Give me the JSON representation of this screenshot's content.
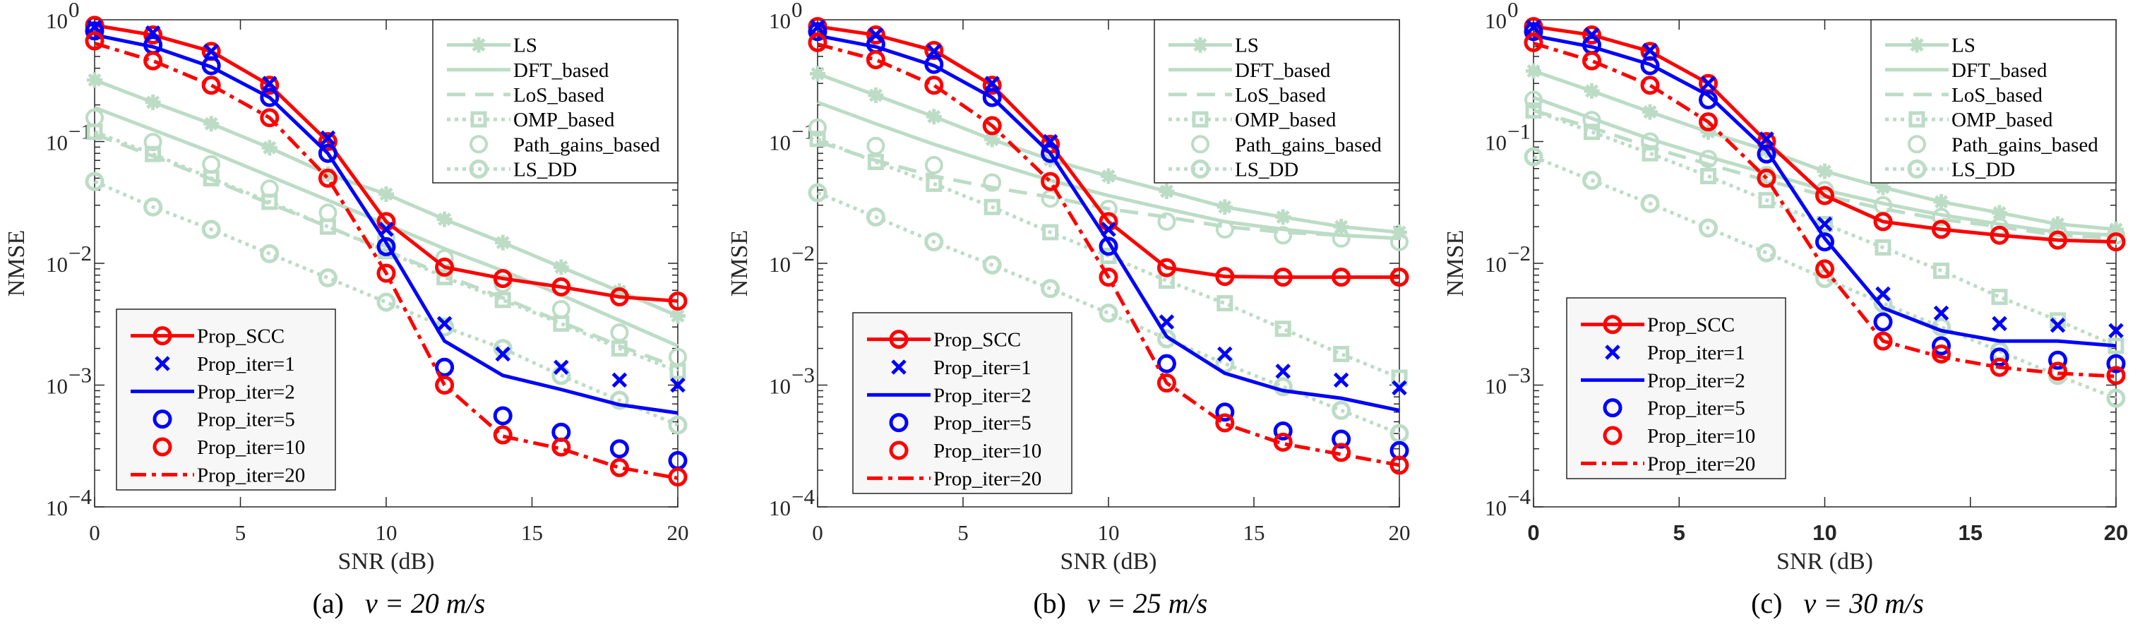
{
  "colors": {
    "proposed_red": "#ff0000",
    "proposed_blue": "#0000ff",
    "baseline_green": "#bcdcc6"
  },
  "chart_data": [
    {
      "type": "line",
      "caption": {
        "label": "(a)",
        "text": "v = 20 m/s"
      },
      "xlabel": "SNR (dB)",
      "ylabel": "NMSE",
      "yscale": "log",
      "ylim": [
        0.0001,
        1
      ],
      "xlim": [
        0,
        20
      ],
      "xticks": [
        "0",
        "5",
        "10",
        "15",
        "20"
      ],
      "yticks": [
        {
          "base": "10",
          "exp": "0"
        },
        {
          "base": "10",
          "exp": "−1"
        },
        {
          "base": "10",
          "exp": "−2"
        },
        {
          "base": "10",
          "exp": "−3"
        },
        {
          "base": "10",
          "exp": "−4"
        }
      ],
      "legend_baselines": "top-right",
      "legend_proposed": "bottom-left",
      "x": [
        0,
        2,
        4,
        6,
        8,
        10,
        12,
        14,
        16,
        18,
        20
      ],
      "series": [
        {
          "name": "LS",
          "group": "baseline",
          "values": [
            0.32,
            0.21,
            0.14,
            0.089,
            0.054,
            0.037,
            0.023,
            0.0148,
            0.0093,
            0.0059,
            0.0037
          ]
        },
        {
          "name": "DFT_based",
          "group": "baseline",
          "values": [
            0.19,
            0.125,
            0.082,
            0.052,
            0.033,
            0.021,
            0.0132,
            0.0087,
            0.0055,
            0.0034,
            0.0021
          ]
        },
        {
          "name": "LoS_based",
          "group": "baseline",
          "values": [
            0.115,
            0.076,
            0.049,
            0.031,
            0.02,
            0.0128,
            0.008,
            0.0052,
            0.0033,
            0.0021,
            0.0014
          ]
        },
        {
          "name": "OMP_based",
          "group": "baseline",
          "values": [
            0.12,
            0.079,
            0.05,
            0.032,
            0.02,
            0.0126,
            0.0077,
            0.005,
            0.0032,
            0.002,
            0.0013
          ]
        },
        {
          "name": "Path_gains_based",
          "group": "baseline",
          "values": [
            0.157,
            0.099,
            0.065,
            0.041,
            0.026,
            0.016,
            0.011,
            0.0068,
            0.0042,
            0.0027,
            0.0017
          ]
        },
        {
          "name": "LS_DD",
          "group": "baseline",
          "values": [
            0.047,
            0.029,
            0.019,
            0.012,
            0.0076,
            0.0048,
            0.003,
            0.002,
            0.0012,
            0.00075,
            0.00047
          ]
        },
        {
          "name": "Prop_SCC",
          "group": "proposed",
          "values": [
            0.9,
            0.75,
            0.55,
            0.29,
            0.1,
            0.022,
            0.0093,
            0.0075,
            0.0064,
            0.0053,
            0.0049
          ]
        },
        {
          "name": "Prop_iter=1",
          "group": "proposed",
          "values": [
            0.87,
            0.78,
            0.55,
            0.3,
            0.107,
            0.019,
            0.0032,
            0.0018,
            0.0014,
            0.0011,
            0.001
          ]
        },
        {
          "name": "Prop_iter=2",
          "group": "proposed",
          "values": [
            0.75,
            0.6,
            0.41,
            0.23,
            0.08,
            0.0148,
            0.0023,
            0.0012,
            0.00092,
            0.00069,
            0.00059
          ]
        },
        {
          "name": "Prop_iter=5",
          "group": "proposed",
          "values": [
            0.81,
            0.62,
            0.42,
            0.23,
            0.08,
            0.0137,
            0.0014,
            0.00056,
            0.00041,
            0.0003,
            0.00024
          ]
        },
        {
          "name": "Prop_iter=10",
          "group": "proposed",
          "values": [
            0.67,
            0.46,
            0.29,
            0.157,
            0.05,
            0.0083,
            0.001,
            0.00039,
            0.00031,
            0.00021,
            0.000176
          ]
        },
        {
          "name": "Prop_iter=20",
          "group": "proposed",
          "values": [
            0.64,
            0.46,
            0.29,
            0.157,
            0.05,
            0.0083,
            0.001,
            0.00038,
            0.0003,
            0.00021,
            0.000172
          ]
        }
      ]
    },
    {
      "type": "line",
      "caption": {
        "label": "(b)",
        "text": "v = 25 m/s"
      },
      "xlabel": "SNR (dB)",
      "ylabel": "NMSE",
      "yscale": "log",
      "ylim": [
        0.0001,
        1
      ],
      "xlim": [
        0,
        20
      ],
      "xticks": [
        "0",
        "5",
        "10",
        "15",
        "20"
      ],
      "yticks": [
        {
          "base": "10",
          "exp": "0"
        },
        {
          "base": "10",
          "exp": "−1"
        },
        {
          "base": "10",
          "exp": "−2"
        },
        {
          "base": "10",
          "exp": "−3"
        },
        {
          "base": "10",
          "exp": "−4"
        }
      ],
      "legend_baselines": "top-right",
      "legend_proposed": "bottom-left",
      "x": [
        0,
        2,
        4,
        6,
        8,
        10,
        12,
        14,
        16,
        18,
        20
      ],
      "series": [
        {
          "name": "LS",
          "group": "baseline",
          "values": [
            0.36,
            0.24,
            0.16,
            0.104,
            0.071,
            0.052,
            0.039,
            0.029,
            0.024,
            0.02,
            0.018
          ]
        },
        {
          "name": "DFT_based",
          "group": "baseline",
          "values": [
            0.21,
            0.14,
            0.095,
            0.067,
            0.048,
            0.036,
            0.028,
            0.022,
            0.019,
            0.017,
            0.016
          ]
        },
        {
          "name": "LoS_based",
          "group": "baseline",
          "values": [
            0.1,
            0.07,
            0.052,
            0.042,
            0.035,
            0.028,
            0.024,
            0.02,
            0.018,
            0.017,
            0.016
          ]
        },
        {
          "name": "OMP_based",
          "group": "baseline",
          "values": [
            0.105,
            0.068,
            0.045,
            0.029,
            0.018,
            0.0115,
            0.0072,
            0.0047,
            0.0029,
            0.0018,
            0.00115
          ]
        },
        {
          "name": "Path_gains_based",
          "group": "baseline",
          "values": [
            0.13,
            0.092,
            0.064,
            0.046,
            0.034,
            0.028,
            0.022,
            0.019,
            0.017,
            0.016,
            0.015
          ]
        },
        {
          "name": "LS_DD",
          "group": "baseline",
          "values": [
            0.038,
            0.024,
            0.015,
            0.0097,
            0.0062,
            0.0039,
            0.0024,
            0.0015,
            0.00097,
            0.00062,
            0.0004
          ]
        },
        {
          "name": "Prop_SCC",
          "group": "proposed",
          "values": [
            0.88,
            0.75,
            0.56,
            0.29,
            0.095,
            0.022,
            0.0092,
            0.0078,
            0.0077,
            0.0077,
            0.0077
          ]
        },
        {
          "name": "Prop_iter=1",
          "group": "proposed",
          "values": [
            0.87,
            0.75,
            0.55,
            0.3,
            0.1,
            0.019,
            0.0033,
            0.0018,
            0.0013,
            0.0011,
            0.00095
          ]
        },
        {
          "name": "Prop_iter=2",
          "group": "proposed",
          "values": [
            0.74,
            0.6,
            0.42,
            0.23,
            0.08,
            0.015,
            0.0025,
            0.00125,
            0.0009,
            0.00078,
            0.00062
          ]
        },
        {
          "name": "Prop_iter=5",
          "group": "proposed",
          "values": [
            0.8,
            0.63,
            0.43,
            0.23,
            0.08,
            0.0138,
            0.0015,
            0.0006,
            0.00042,
            0.00036,
            0.00029
          ]
        },
        {
          "name": "Prop_iter=10",
          "group": "proposed",
          "values": [
            0.65,
            0.47,
            0.29,
            0.135,
            0.047,
            0.0077,
            0.00104,
            0.00049,
            0.00034,
            0.00028,
            0.00022
          ]
        },
        {
          "name": "Prop_iter=20",
          "group": "proposed",
          "values": [
            0.63,
            0.47,
            0.29,
            0.135,
            0.047,
            0.0077,
            0.00104,
            0.00048,
            0.00033,
            0.00027,
            0.00022
          ]
        }
      ]
    },
    {
      "type": "line",
      "caption": {
        "label": "(c)",
        "text": "v = 30 m/s"
      },
      "xlabel": "SNR (dB)",
      "ylabel": "NMSE",
      "yscale": "log",
      "ylim": [
        0.0001,
        1
      ],
      "xlim": [
        0,
        20
      ],
      "xticks": [
        "0",
        "5",
        "10",
        "15",
        "20"
      ],
      "yticks": [
        {
          "base": "10",
          "exp": "0"
        },
        {
          "base": "10",
          "exp": "−1"
        },
        {
          "base": "10",
          "exp": "−2"
        },
        {
          "base": "10",
          "exp": "−3"
        },
        {
          "base": "10",
          "exp": "−4"
        }
      ],
      "legend_baselines": "top-right",
      "legend_proposed": "bottom-left",
      "x": [
        0,
        2,
        4,
        6,
        8,
        10,
        12,
        14,
        16,
        18,
        20
      ],
      "series": [
        {
          "name": "LS",
          "group": "baseline",
          "values": [
            0.38,
            0.26,
            0.175,
            0.12,
            0.085,
            0.057,
            0.042,
            0.032,
            0.026,
            0.021,
            0.019
          ]
        },
        {
          "name": "DFT_based",
          "group": "baseline",
          "values": [
            0.23,
            0.155,
            0.105,
            0.075,
            0.055,
            0.04,
            0.031,
            0.025,
            0.021,
            0.018,
            0.017
          ]
        },
        {
          "name": "LoS_based",
          "group": "baseline",
          "values": [
            0.18,
            0.13,
            0.09,
            0.065,
            0.048,
            0.036,
            0.028,
            0.023,
            0.02,
            0.017,
            0.016
          ]
        },
        {
          "name": "OMP_based",
          "group": "baseline",
          "values": [
            0.18,
            0.12,
            0.08,
            0.052,
            0.033,
            0.021,
            0.0135,
            0.0087,
            0.0053,
            0.0034,
            0.0021
          ]
        },
        {
          "name": "Path_gains_based",
          "group": "baseline",
          "values": [
            0.22,
            0.15,
            0.1,
            0.072,
            0.053,
            0.04,
            0.03,
            0.024,
            0.02,
            0.018,
            0.017
          ]
        },
        {
          "name": "LS_DD",
          "group": "baseline",
          "values": [
            0.075,
            0.048,
            0.031,
            0.0195,
            0.0122,
            0.0075,
            0.0047,
            0.003,
            0.0019,
            0.0012,
            0.00078
          ]
        },
        {
          "name": "Prop_SCC",
          "group": "proposed",
          "values": [
            0.88,
            0.75,
            0.55,
            0.3,
            0.1,
            0.036,
            0.022,
            0.019,
            0.017,
            0.0155,
            0.015
          ]
        },
        {
          "name": "Prop_iter=1",
          "group": "proposed",
          "values": [
            0.87,
            0.75,
            0.56,
            0.3,
            0.105,
            0.021,
            0.0056,
            0.0039,
            0.0032,
            0.0031,
            0.0028
          ]
        },
        {
          "name": "Prop_iter=2",
          "group": "proposed",
          "values": [
            0.74,
            0.6,
            0.43,
            0.24,
            0.085,
            0.016,
            0.0043,
            0.0028,
            0.0023,
            0.0023,
            0.0021
          ]
        },
        {
          "name": "Prop_iter=5",
          "group": "proposed",
          "values": [
            0.8,
            0.62,
            0.42,
            0.22,
            0.079,
            0.015,
            0.0033,
            0.0021,
            0.0017,
            0.0016,
            0.0015
          ]
        },
        {
          "name": "Prop_iter=10",
          "group": "proposed",
          "values": [
            0.65,
            0.46,
            0.29,
            0.145,
            0.05,
            0.009,
            0.0023,
            0.0018,
            0.0014,
            0.0013,
            0.0012
          ]
        },
        {
          "name": "Prop_iter=20",
          "group": "proposed",
          "values": [
            0.64,
            0.46,
            0.29,
            0.145,
            0.05,
            0.009,
            0.0023,
            0.0017,
            0.0014,
            0.00125,
            0.00118
          ]
        }
      ]
    }
  ]
}
